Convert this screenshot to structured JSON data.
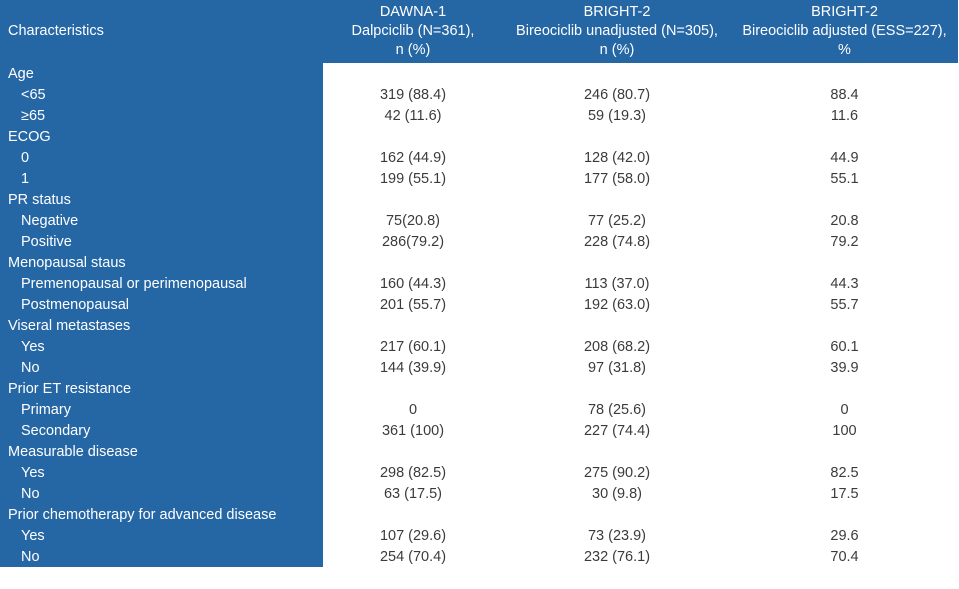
{
  "colors": {
    "header_bg": "#2566a5",
    "header_text": "#ffffff",
    "value_text": "#3b3b3b",
    "page_bg": "#ffffff"
  },
  "table": {
    "header": {
      "characteristics_label": "Characteristics",
      "columns": [
        {
          "line1": "DAWNA-1",
          "line2": "Dalpciclib (N=361),",
          "line3": "n (%)"
        },
        {
          "line1": "BRIGHT-2",
          "line2": "Bireociclib unadjusted (N=305),",
          "line3": "n (%)"
        },
        {
          "line1": "BRIGHT-2",
          "line2": "Bireociclib adjusted (ESS=227),",
          "line3": "%"
        }
      ]
    },
    "rows": [
      {
        "label": "Age",
        "indent": false,
        "values": [
          "",
          "",
          ""
        ]
      },
      {
        "label": "<65",
        "indent": true,
        "values": [
          "319 (88.4)",
          "246 (80.7)",
          "88.4"
        ]
      },
      {
        "label": "≥65",
        "indent": true,
        "values": [
          "42 (11.6)",
          "59 (19.3)",
          "11.6"
        ]
      },
      {
        "label": "ECOG",
        "indent": false,
        "values": [
          "",
          "",
          ""
        ]
      },
      {
        "label": "0",
        "indent": true,
        "values": [
          "162 (44.9)",
          "128 (42.0)",
          "44.9"
        ]
      },
      {
        "label": "1",
        "indent": true,
        "values": [
          "199 (55.1)",
          "177 (58.0)",
          "55.1"
        ]
      },
      {
        "label": "PR status",
        "indent": false,
        "values": [
          "",
          "",
          ""
        ]
      },
      {
        "label": "Negative",
        "indent": true,
        "values": [
          "75(20.8)",
          "77 (25.2)",
          "20.8"
        ]
      },
      {
        "label": "Positive",
        "indent": true,
        "values": [
          "286(79.2)",
          "228 (74.8)",
          "79.2"
        ]
      },
      {
        "label": "Menopausal staus",
        "indent": false,
        "values": [
          "",
          "",
          ""
        ]
      },
      {
        "label": "Premenopausal or perimenopausal",
        "indent": true,
        "values": [
          "160 (44.3)",
          "113 (37.0)",
          "44.3"
        ]
      },
      {
        "label": "Postmenopausal",
        "indent": true,
        "values": [
          "201 (55.7)",
          "192 (63.0)",
          "55.7"
        ]
      },
      {
        "label": "Viseral metastases",
        "indent": false,
        "values": [
          "",
          "",
          ""
        ]
      },
      {
        "label": "Yes",
        "indent": true,
        "values": [
          "217 (60.1)",
          "208 (68.2)",
          "60.1"
        ]
      },
      {
        "label": "No",
        "indent": true,
        "values": [
          "144 (39.9)",
          "97 (31.8)",
          "39.9"
        ]
      },
      {
        "label": "Prior ET resistance",
        "indent": false,
        "values": [
          "",
          "",
          ""
        ]
      },
      {
        "label": "Primary",
        "indent": true,
        "values": [
          "0",
          "78 (25.6)",
          "0"
        ]
      },
      {
        "label": "Secondary",
        "indent": true,
        "values": [
          "361 (100)",
          "227 (74.4)",
          "100"
        ]
      },
      {
        "label": "Measurable disease",
        "indent": false,
        "values": [
          "",
          "",
          ""
        ]
      },
      {
        "label": "Yes",
        "indent": true,
        "values": [
          "298 (82.5)",
          "275 (90.2)",
          "82.5"
        ]
      },
      {
        "label": "No",
        "indent": true,
        "values": [
          "63 (17.5)",
          "30 (9.8)",
          "17.5"
        ]
      },
      {
        "label": "Prior chemotherapy for advanced disease",
        "indent": false,
        "values": [
          "",
          "",
          ""
        ]
      },
      {
        "label": "Yes",
        "indent": true,
        "values": [
          "107 (29.6)",
          "73 (23.9)",
          "29.6"
        ]
      },
      {
        "label": "No",
        "indent": true,
        "values": [
          "254 (70.4)",
          "232 (76.1)",
          "70.4"
        ]
      }
    ]
  }
}
